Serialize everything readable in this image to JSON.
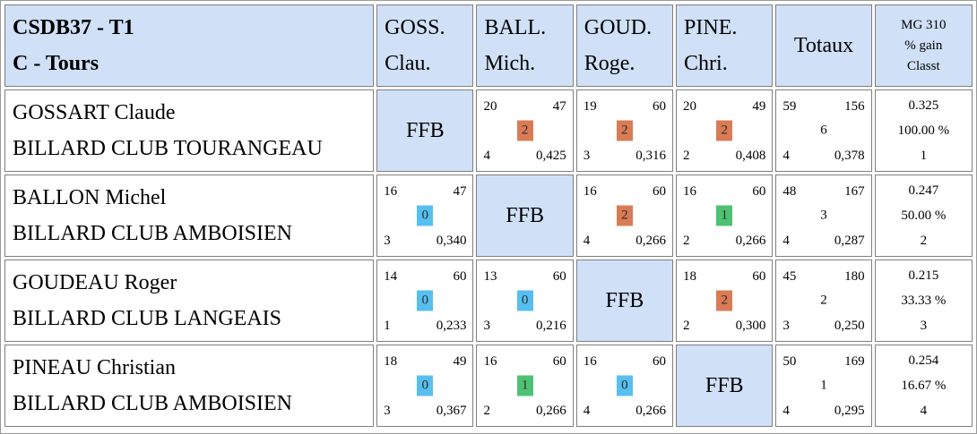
{
  "header": {
    "title_line1": "CSDB37 - T1",
    "title_line2": "C - Tours",
    "players": [
      {
        "line1": "GOSS.",
        "line2": "Clau."
      },
      {
        "line1": "BALL.",
        "line2": "Mich."
      },
      {
        "line1": "GOUD.",
        "line2": "Roge."
      },
      {
        "line1": "PINE.",
        "line2": "Chri."
      }
    ],
    "totals_label": "Totaux",
    "stats_line1": "MG 310",
    "stats_line2": "% gain",
    "stats_line3": "Classt"
  },
  "colors": {
    "header_bg": "#cfe0f7",
    "badge_win": "#d97c55",
    "badge_draw": "#4dc274",
    "badge_loss": "#57bff0"
  },
  "rows": [
    {
      "name": "GOSSART Claude",
      "club": "BILLARD CLUB TOURANGEAU",
      "cells": [
        {
          "ffb": "FFB"
        },
        {
          "tl": "20",
          "tr": "47",
          "points": "2",
          "bl": "4",
          "br": "0,425",
          "badge": "badge_win"
        },
        {
          "tl": "19",
          "tr": "60",
          "points": "2",
          "bl": "3",
          "br": "0,316",
          "badge": "badge_win"
        },
        {
          "tl": "20",
          "tr": "49",
          "points": "2",
          "bl": "2",
          "br": "0,408",
          "badge": "badge_win"
        }
      ],
      "totals": {
        "tl": "59",
        "tr": "156",
        "points": "6",
        "bl": "4",
        "br": "0,378"
      },
      "stats": {
        "mg": "0.325",
        "pct": "100.00 %",
        "rank": "1"
      }
    },
    {
      "name": "BALLON Michel",
      "club": "BILLARD CLUB AMBOISIEN",
      "cells": [
        {
          "tl": "16",
          "tr": "47",
          "points": "0",
          "bl": "3",
          "br": "0,340",
          "badge": "badge_loss"
        },
        {
          "ffb": "FFB"
        },
        {
          "tl": "16",
          "tr": "60",
          "points": "2",
          "bl": "4",
          "br": "0,266",
          "badge": "badge_win"
        },
        {
          "tl": "16",
          "tr": "60",
          "points": "1",
          "bl": "2",
          "br": "0,266",
          "badge": "badge_draw"
        }
      ],
      "totals": {
        "tl": "48",
        "tr": "167",
        "points": "3",
        "bl": "4",
        "br": "0,287"
      },
      "stats": {
        "mg": "0.247",
        "pct": "50.00 %",
        "rank": "2"
      }
    },
    {
      "name": "GOUDEAU Roger",
      "club": "BILLARD CLUB LANGEAIS",
      "cells": [
        {
          "tl": "14",
          "tr": "60",
          "points": "0",
          "bl": "1",
          "br": "0,233",
          "badge": "badge_loss"
        },
        {
          "tl": "13",
          "tr": "60",
          "points": "0",
          "bl": "3",
          "br": "0,216",
          "badge": "badge_loss"
        },
        {
          "ffb": "FFB"
        },
        {
          "tl": "18",
          "tr": "60",
          "points": "2",
          "bl": "2",
          "br": "0,300",
          "badge": "badge_win"
        }
      ],
      "totals": {
        "tl": "45",
        "tr": "180",
        "points": "2",
        "bl": "3",
        "br": "0,250"
      },
      "stats": {
        "mg": "0.215",
        "pct": "33.33 %",
        "rank": "3"
      }
    },
    {
      "name": "PINEAU Christian",
      "club": "BILLARD CLUB AMBOISIEN",
      "cells": [
        {
          "tl": "18",
          "tr": "49",
          "points": "0",
          "bl": "3",
          "br": "0,367",
          "badge": "badge_loss"
        },
        {
          "tl": "16",
          "tr": "60",
          "points": "1",
          "bl": "2",
          "br": "0,266",
          "badge": "badge_draw"
        },
        {
          "tl": "16",
          "tr": "60",
          "points": "0",
          "bl": "4",
          "br": "0,266",
          "badge": "badge_loss"
        },
        {
          "ffb": "FFB"
        }
      ],
      "totals": {
        "tl": "50",
        "tr": "169",
        "points": "1",
        "bl": "4",
        "br": "0,295"
      },
      "stats": {
        "mg": "0.254",
        "pct": "16.67 %",
        "rank": "4"
      }
    }
  ]
}
